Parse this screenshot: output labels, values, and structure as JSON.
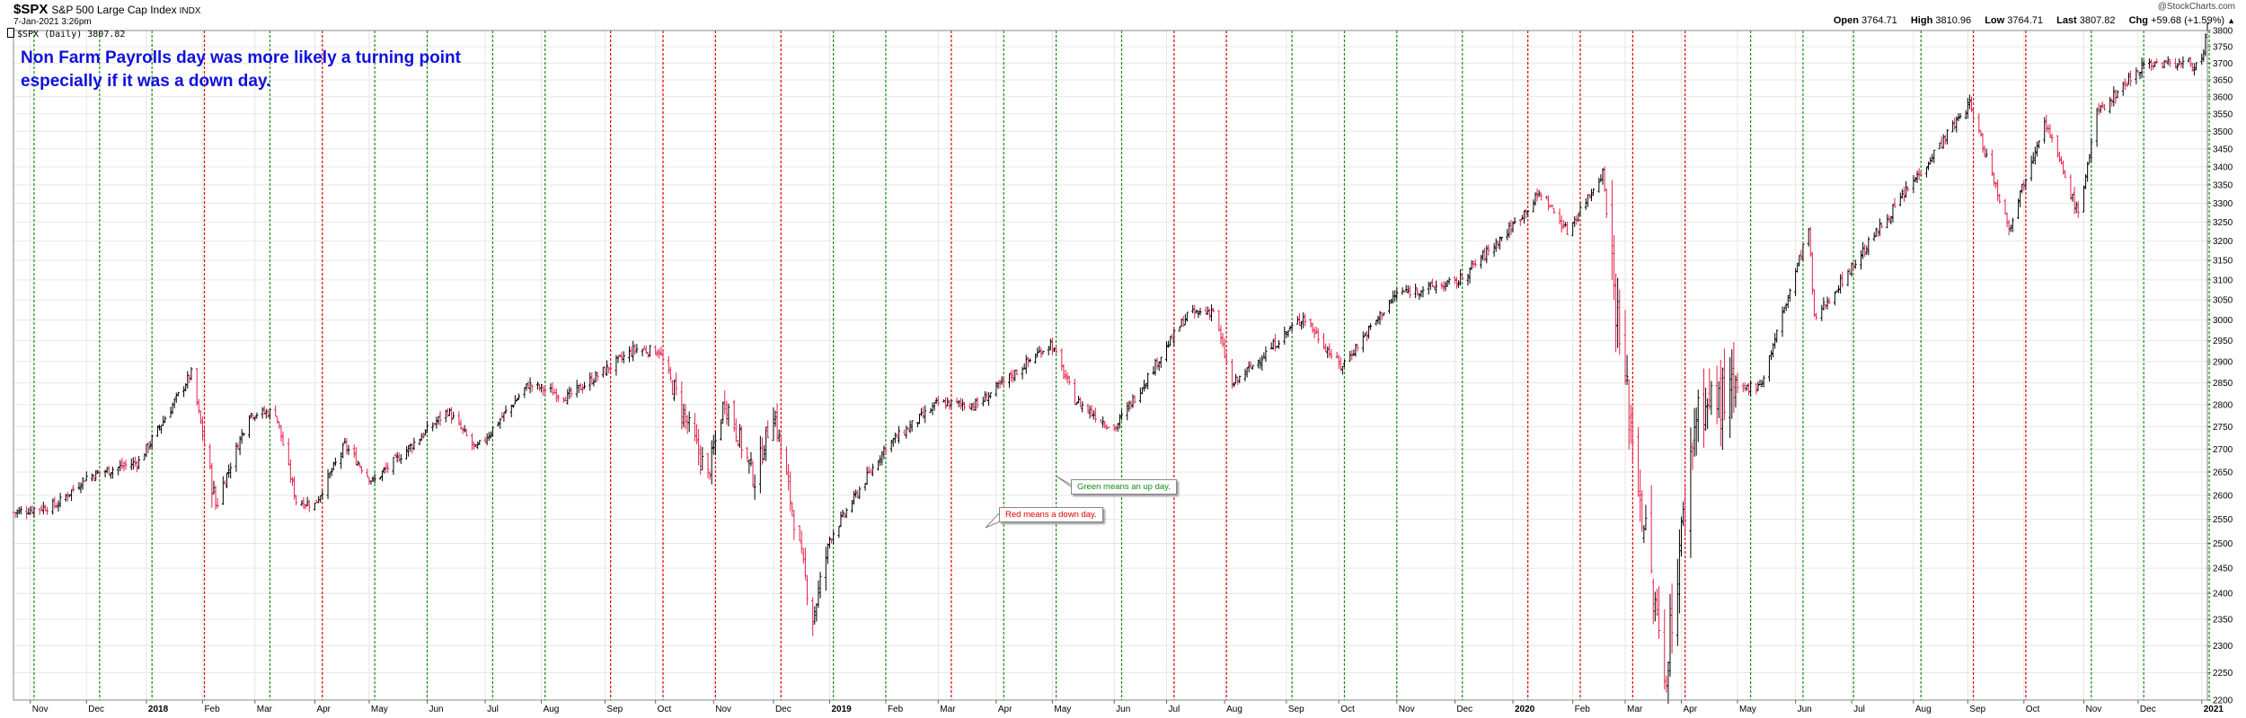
{
  "header": {
    "symbol": "$SPX",
    "name": "S&P 500 Large Cap Index",
    "exchange": "INDX",
    "datetime": "7-Jan-2021 3:26pm",
    "copyright": "@StockCharts.com",
    "series_label": "$SPX (Daily) 3807.82",
    "open_label": "Open",
    "open": "3764.71",
    "high_label": "High",
    "high": "3810.96",
    "low_label": "Low",
    "low": "3764.71",
    "last_label": "Last",
    "last": "3807.82",
    "chg_label": "Chg",
    "chg": "+59.68 (+1.59%)",
    "chg_arrow": "▲"
  },
  "annotations": {
    "title_line1": "Non Farm Payrolls day was more likely a turning point",
    "title_line2": "especially if it was a down day.",
    "green_note": "Green means an up day.",
    "red_note": "Red means a down day."
  },
  "colors": {
    "up_line": "#1a8a1a",
    "down_line": "#e00000",
    "up_bar": "#000000",
    "down_bar": "#e8204a",
    "annotation_text": "#1010dd",
    "grid": "#e6e6e6"
  },
  "chart_data": {
    "type": "line",
    "title": "$SPX S&P 500 Large Cap Index",
    "bar_style": "OHLC price bars (black = up, red = down)",
    "x_range": [
      "2017-10-23",
      "2021-01-07"
    ],
    "ylim": [
      2200,
      3800
    ],
    "y_scale": "log",
    "y_ticks": [
      2200,
      2250,
      2300,
      2350,
      2400,
      2450,
      2500,
      2550,
      2600,
      2650,
      2700,
      2750,
      2800,
      2850,
      2900,
      2950,
      3000,
      3050,
      3100,
      3150,
      3200,
      3250,
      3300,
      3350,
      3400,
      3450,
      3500,
      3550,
      3600,
      3650,
      3700,
      3750,
      3800
    ],
    "x_tick_labels": [
      {
        "date": "2017-11-01",
        "label": "Nov"
      },
      {
        "date": "2017-12-01",
        "label": "Dec"
      },
      {
        "date": "2018-01-02",
        "label": "2018"
      },
      {
        "date": "2018-02-01",
        "label": "Feb"
      },
      {
        "date": "2018-03-01",
        "label": "Mar"
      },
      {
        "date": "2018-04-02",
        "label": "Apr"
      },
      {
        "date": "2018-05-01",
        "label": "May"
      },
      {
        "date": "2018-06-01",
        "label": "Jun"
      },
      {
        "date": "2018-07-02",
        "label": "Jul"
      },
      {
        "date": "2018-08-01",
        "label": "Aug"
      },
      {
        "date": "2018-09-04",
        "label": "Sep"
      },
      {
        "date": "2018-10-01",
        "label": "Oct"
      },
      {
        "date": "2018-11-01",
        "label": "Nov"
      },
      {
        "date": "2018-12-03",
        "label": "Dec"
      },
      {
        "date": "2019-01-02",
        "label": "2019"
      },
      {
        "date": "2019-02-01",
        "label": "Feb"
      },
      {
        "date": "2019-03-01",
        "label": "Mar"
      },
      {
        "date": "2019-04-01",
        "label": "Apr"
      },
      {
        "date": "2019-05-01",
        "label": "May"
      },
      {
        "date": "2019-06-03",
        "label": "Jun"
      },
      {
        "date": "2019-07-01",
        "label": "Jul"
      },
      {
        "date": "2019-08-01",
        "label": "Aug"
      },
      {
        "date": "2019-09-03",
        "label": "Sep"
      },
      {
        "date": "2019-10-01",
        "label": "Oct"
      },
      {
        "date": "2019-11-01",
        "label": "Nov"
      },
      {
        "date": "2019-12-02",
        "label": "Dec"
      },
      {
        "date": "2020-01-02",
        "label": "2020"
      },
      {
        "date": "2020-02-03",
        "label": "Feb"
      },
      {
        "date": "2020-03-02",
        "label": "Mar"
      },
      {
        "date": "2020-04-01",
        "label": "Apr"
      },
      {
        "date": "2020-05-01",
        "label": "May"
      },
      {
        "date": "2020-06-01",
        "label": "Jun"
      },
      {
        "date": "2020-07-01",
        "label": "Jul"
      },
      {
        "date": "2020-08-03",
        "label": "Aug"
      },
      {
        "date": "2020-09-01",
        "label": "Sep"
      },
      {
        "date": "2020-10-01",
        "label": "Oct"
      },
      {
        "date": "2020-11-02",
        "label": "Nov"
      },
      {
        "date": "2020-12-01",
        "label": "Dec"
      },
      {
        "date": "2021-01-04",
        "label": "2021"
      }
    ],
    "nfp_markers": [
      {
        "date": "2017-11-03",
        "type": "up"
      },
      {
        "date": "2017-12-08",
        "type": "up"
      },
      {
        "date": "2018-01-05",
        "type": "up"
      },
      {
        "date": "2018-02-02",
        "type": "down"
      },
      {
        "date": "2018-03-09",
        "type": "up"
      },
      {
        "date": "2018-04-06",
        "type": "down"
      },
      {
        "date": "2018-05-04",
        "type": "up"
      },
      {
        "date": "2018-06-01",
        "type": "up"
      },
      {
        "date": "2018-07-06",
        "type": "up"
      },
      {
        "date": "2018-08-03",
        "type": "up"
      },
      {
        "date": "2018-09-07",
        "type": "down"
      },
      {
        "date": "2018-10-05",
        "type": "down"
      },
      {
        "date": "2018-11-02",
        "type": "down"
      },
      {
        "date": "2018-12-07",
        "type": "down"
      },
      {
        "date": "2019-01-04",
        "type": "up"
      },
      {
        "date": "2019-02-01",
        "type": "up"
      },
      {
        "date": "2019-03-08",
        "type": "down"
      },
      {
        "date": "2019-04-05",
        "type": "up"
      },
      {
        "date": "2019-05-03",
        "type": "up"
      },
      {
        "date": "2019-06-07",
        "type": "up"
      },
      {
        "date": "2019-07-05",
        "type": "down"
      },
      {
        "date": "2019-08-02",
        "type": "down"
      },
      {
        "date": "2019-09-06",
        "type": "up"
      },
      {
        "date": "2019-10-04",
        "type": "up"
      },
      {
        "date": "2019-11-01",
        "type": "up"
      },
      {
        "date": "2019-12-06",
        "type": "up"
      },
      {
        "date": "2020-01-10",
        "type": "down"
      },
      {
        "date": "2020-02-07",
        "type": "down"
      },
      {
        "date": "2020-03-06",
        "type": "down"
      },
      {
        "date": "2020-04-03",
        "type": "down"
      },
      {
        "date": "2020-05-08",
        "type": "up"
      },
      {
        "date": "2020-06-05",
        "type": "up"
      },
      {
        "date": "2020-07-02",
        "type": "up"
      },
      {
        "date": "2020-08-07",
        "type": "up"
      },
      {
        "date": "2020-09-04",
        "type": "down"
      },
      {
        "date": "2020-10-02",
        "type": "down"
      },
      {
        "date": "2020-11-06",
        "type": "up"
      },
      {
        "date": "2020-12-04",
        "type": "up"
      },
      {
        "date": "2021-01-08",
        "type": "up"
      }
    ],
    "close_path": [
      {
        "date": "2017-10-23",
        "close": 2564
      },
      {
        "date": "2017-11-15",
        "close": 2580
      },
      {
        "date": "2017-12-01",
        "close": 2640
      },
      {
        "date": "2017-12-29",
        "close": 2673
      },
      {
        "date": "2018-01-26",
        "close": 2872
      },
      {
        "date": "2018-02-08",
        "close": 2580
      },
      {
        "date": "2018-02-26",
        "close": 2779
      },
      {
        "date": "2018-03-12",
        "close": 2783
      },
      {
        "date": "2018-03-23",
        "close": 2588
      },
      {
        "date": "2018-04-02",
        "close": 2581
      },
      {
        "date": "2018-04-18",
        "close": 2708
      },
      {
        "date": "2018-05-03",
        "close": 2629
      },
      {
        "date": "2018-06-12",
        "close": 2786
      },
      {
        "date": "2018-06-27",
        "close": 2699
      },
      {
        "date": "2018-07-25",
        "close": 2846
      },
      {
        "date": "2018-08-15",
        "close": 2818
      },
      {
        "date": "2018-09-20",
        "close": 2930
      },
      {
        "date": "2018-10-03",
        "close": 2925
      },
      {
        "date": "2018-10-29",
        "close": 2641
      },
      {
        "date": "2018-11-07",
        "close": 2813
      },
      {
        "date": "2018-11-23",
        "close": 2633
      },
      {
        "date": "2018-12-03",
        "close": 2790
      },
      {
        "date": "2018-12-24",
        "close": 2351
      },
      {
        "date": "2019-01-02",
        "close": 2510
      },
      {
        "date": "2019-02-01",
        "close": 2706
      },
      {
        "date": "2019-03-01",
        "close": 2803
      },
      {
        "date": "2019-03-22",
        "close": 2800
      },
      {
        "date": "2019-04-30",
        "close": 2945
      },
      {
        "date": "2019-05-13",
        "close": 2811
      },
      {
        "date": "2019-06-03",
        "close": 2744
      },
      {
        "date": "2019-07-12",
        "close": 3013
      },
      {
        "date": "2019-07-26",
        "close": 3025
      },
      {
        "date": "2019-08-05",
        "close": 2844
      },
      {
        "date": "2019-09-12",
        "close": 3009
      },
      {
        "date": "2019-10-02",
        "close": 2887
      },
      {
        "date": "2019-11-01",
        "close": 3066
      },
      {
        "date": "2019-12-03",
        "close": 3093
      },
      {
        "date": "2019-12-31",
        "close": 3230
      },
      {
        "date": "2020-01-17",
        "close": 3329
      },
      {
        "date": "2020-01-31",
        "close": 3225
      },
      {
        "date": "2020-02-19",
        "close": 3386
      },
      {
        "date": "2020-02-28",
        "close": 2954
      },
      {
        "date": "2020-03-23",
        "close": 2237
      },
      {
        "date": "2020-04-09",
        "close": 2790
      },
      {
        "date": "2020-05-14",
        "close": 2852
      },
      {
        "date": "2020-06-08",
        "close": 3232
      },
      {
        "date": "2020-06-11",
        "close": 3002
      },
      {
        "date": "2020-07-22",
        "close": 3276
      },
      {
        "date": "2020-09-02",
        "close": 3580
      },
      {
        "date": "2020-09-23",
        "close": 3237
      },
      {
        "date": "2020-10-12",
        "close": 3534
      },
      {
        "date": "2020-10-30",
        "close": 3270
      },
      {
        "date": "2020-11-09",
        "close": 3550
      },
      {
        "date": "2020-12-04",
        "close": 3699
      },
      {
        "date": "2021-01-04",
        "close": 3700
      },
      {
        "date": "2021-01-07",
        "close": 3807.82
      }
    ]
  }
}
